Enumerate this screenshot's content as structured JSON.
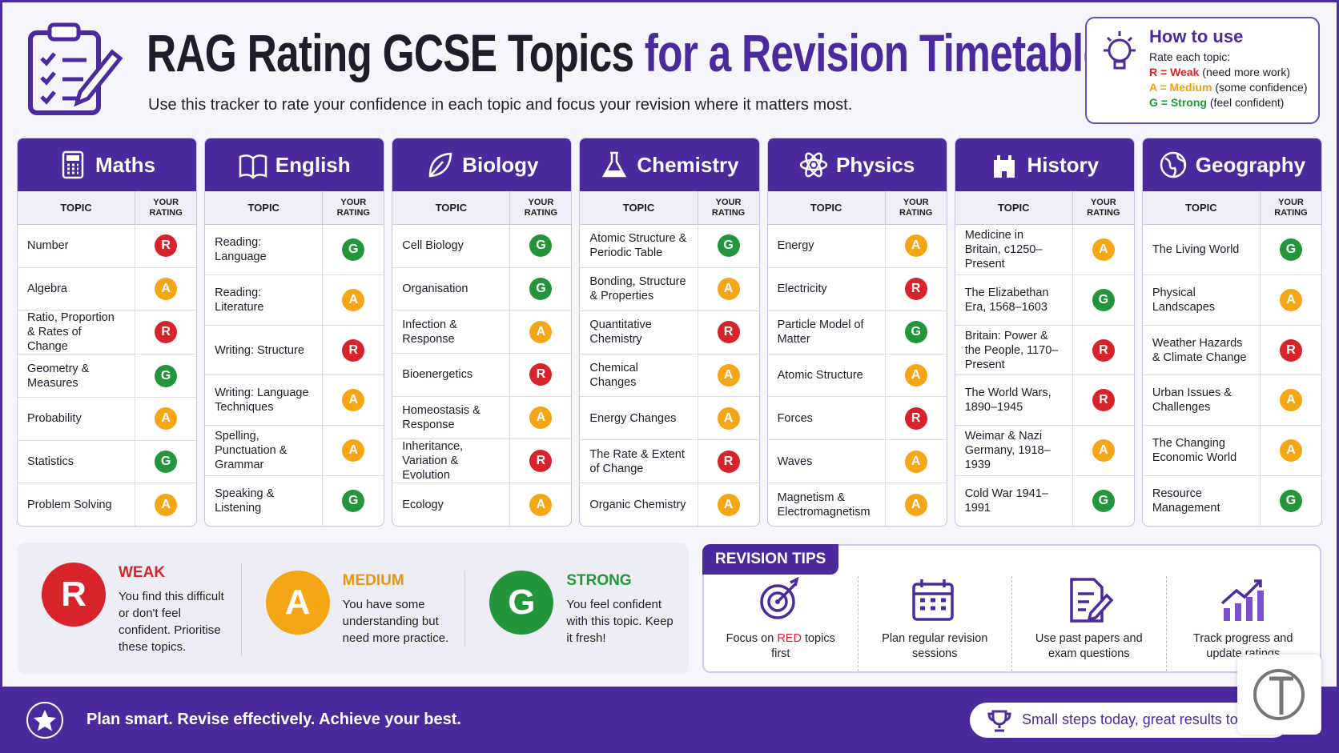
{
  "header": {
    "title_main": "RAG Rating GCSE Topics",
    "title_accent": "for a Revision Timetable",
    "subtitle": "Use this tracker to rate your confidence in each topic and focus your revision where it matters most."
  },
  "how_to_use": {
    "title": "How to use",
    "intro": "Rate each topic:",
    "items": [
      {
        "key": "R = Weak",
        "note": "(need more work)",
        "color": "#d8232a"
      },
      {
        "key": "A = Medium",
        "note": "(some confidence)",
        "color": "#f0a00c"
      },
      {
        "key": "G = Strong",
        "note": "(feel confident)",
        "color": "#23963c"
      }
    ]
  },
  "rating_colors": {
    "R": "#d8232a",
    "A": "#f5a614",
    "G": "#23963c"
  },
  "table_headers": {
    "topic": "TOPIC",
    "rating": "YOUR RATING"
  },
  "subjects": [
    {
      "name": "Maths",
      "rows": [
        {
          "topic": "Number",
          "rating": "R"
        },
        {
          "topic": "Algebra",
          "rating": "A"
        },
        {
          "topic": "Ratio, Proportion & Rates of Change",
          "rating": "R"
        },
        {
          "topic": "Geometry & Measures",
          "rating": "G"
        },
        {
          "topic": "Probability",
          "rating": "A"
        },
        {
          "topic": "Statistics",
          "rating": "G"
        },
        {
          "topic": "Problem Solving",
          "rating": "A"
        }
      ]
    },
    {
      "name": "English",
      "rows": [
        {
          "topic": "Reading: Language",
          "rating": "G"
        },
        {
          "topic": "Reading: Literature",
          "rating": "A"
        },
        {
          "topic": "Writing: Structure",
          "rating": "R"
        },
        {
          "topic": "Writing: Language Techniques",
          "rating": "A"
        },
        {
          "topic": "Spelling, Punctuation & Grammar",
          "rating": "A"
        },
        {
          "topic": "Speaking & Listening",
          "rating": "G"
        }
      ]
    },
    {
      "name": "Biology",
      "rows": [
        {
          "topic": "Cell Biology",
          "rating": "G"
        },
        {
          "topic": "Organisation",
          "rating": "G"
        },
        {
          "topic": "Infection & Response",
          "rating": "A"
        },
        {
          "topic": "Bioenergetics",
          "rating": "R"
        },
        {
          "topic": "Homeostasis & Response",
          "rating": "A"
        },
        {
          "topic": "Inheritance, Variation & Evolution",
          "rating": "R"
        },
        {
          "topic": "Ecology",
          "rating": "A"
        }
      ]
    },
    {
      "name": "Chemistry",
      "rows": [
        {
          "topic": "Atomic Structure & Periodic Table",
          "rating": "G"
        },
        {
          "topic": "Bonding, Structure & Properties",
          "rating": "A"
        },
        {
          "topic": "Quantitative Chemistry",
          "rating": "R"
        },
        {
          "topic": "Chemical Changes",
          "rating": "A"
        },
        {
          "topic": "Energy Changes",
          "rating": "A"
        },
        {
          "topic": "The Rate & Extent of Change",
          "rating": "R"
        },
        {
          "topic": "Organic Chemistry",
          "rating": "A"
        }
      ]
    },
    {
      "name": "Physics",
      "rows": [
        {
          "topic": "Energy",
          "rating": "A"
        },
        {
          "topic": "Electricity",
          "rating": "R"
        },
        {
          "topic": "Particle Model of Matter",
          "rating": "G"
        },
        {
          "topic": "Atomic Structure",
          "rating": "A"
        },
        {
          "topic": "Forces",
          "rating": "R"
        },
        {
          "topic": "Waves",
          "rating": "A"
        },
        {
          "topic": "Magnetism & Electromagnetism",
          "rating": "A"
        }
      ]
    },
    {
      "name": "History",
      "rows": [
        {
          "topic": "Medicine in Britain, c1250–Present",
          "rating": "A"
        },
        {
          "topic": "The Elizabethan Era, 1568–1603",
          "rating": "G"
        },
        {
          "topic": "Britain: Power & the People, 1170–Present",
          "rating": "R"
        },
        {
          "topic": "The World Wars, 1890–1945",
          "rating": "R"
        },
        {
          "topic": "Weimar & Nazi Germany, 1918–1939",
          "rating": "A"
        },
        {
          "topic": "Cold War 1941–1991",
          "rating": "G"
        }
      ]
    },
    {
      "name": "Geography",
      "rows": [
        {
          "topic": "The Living World",
          "rating": "G"
        },
        {
          "topic": "Physical Landscapes",
          "rating": "A"
        },
        {
          "topic": "Weather Hazards & Climate Change",
          "rating": "R"
        },
        {
          "topic": "Urban Issues & Challenges",
          "rating": "A"
        },
        {
          "topic": "The Changing Economic World",
          "rating": "A"
        },
        {
          "topic": "Resource Management",
          "rating": "G"
        }
      ]
    }
  ],
  "legend": [
    {
      "letter": "R",
      "label": "WEAK",
      "text": "You find this difficult or don't feel confident. Prioritise these topics."
    },
    {
      "letter": "A",
      "label": "MEDIUM",
      "text": "You have some understanding but need more practice."
    },
    {
      "letter": "G",
      "label": "STRONG",
      "text": "You feel confident with this topic. Keep it fresh!"
    }
  ],
  "tips": {
    "title": "REVISION TIPS",
    "items": [
      {
        "before": "Focus on",
        "highlight": "RED",
        "after": "topics first"
      },
      {
        "text": "Plan regular revision sessions"
      },
      {
        "text": "Use past papers and exam questions"
      },
      {
        "text": "Track progress and update ratings"
      }
    ]
  },
  "footer": {
    "left": "Plan smart. Revise effectively. Achieve your best.",
    "right": "Small steps today, great results tomorrow"
  }
}
